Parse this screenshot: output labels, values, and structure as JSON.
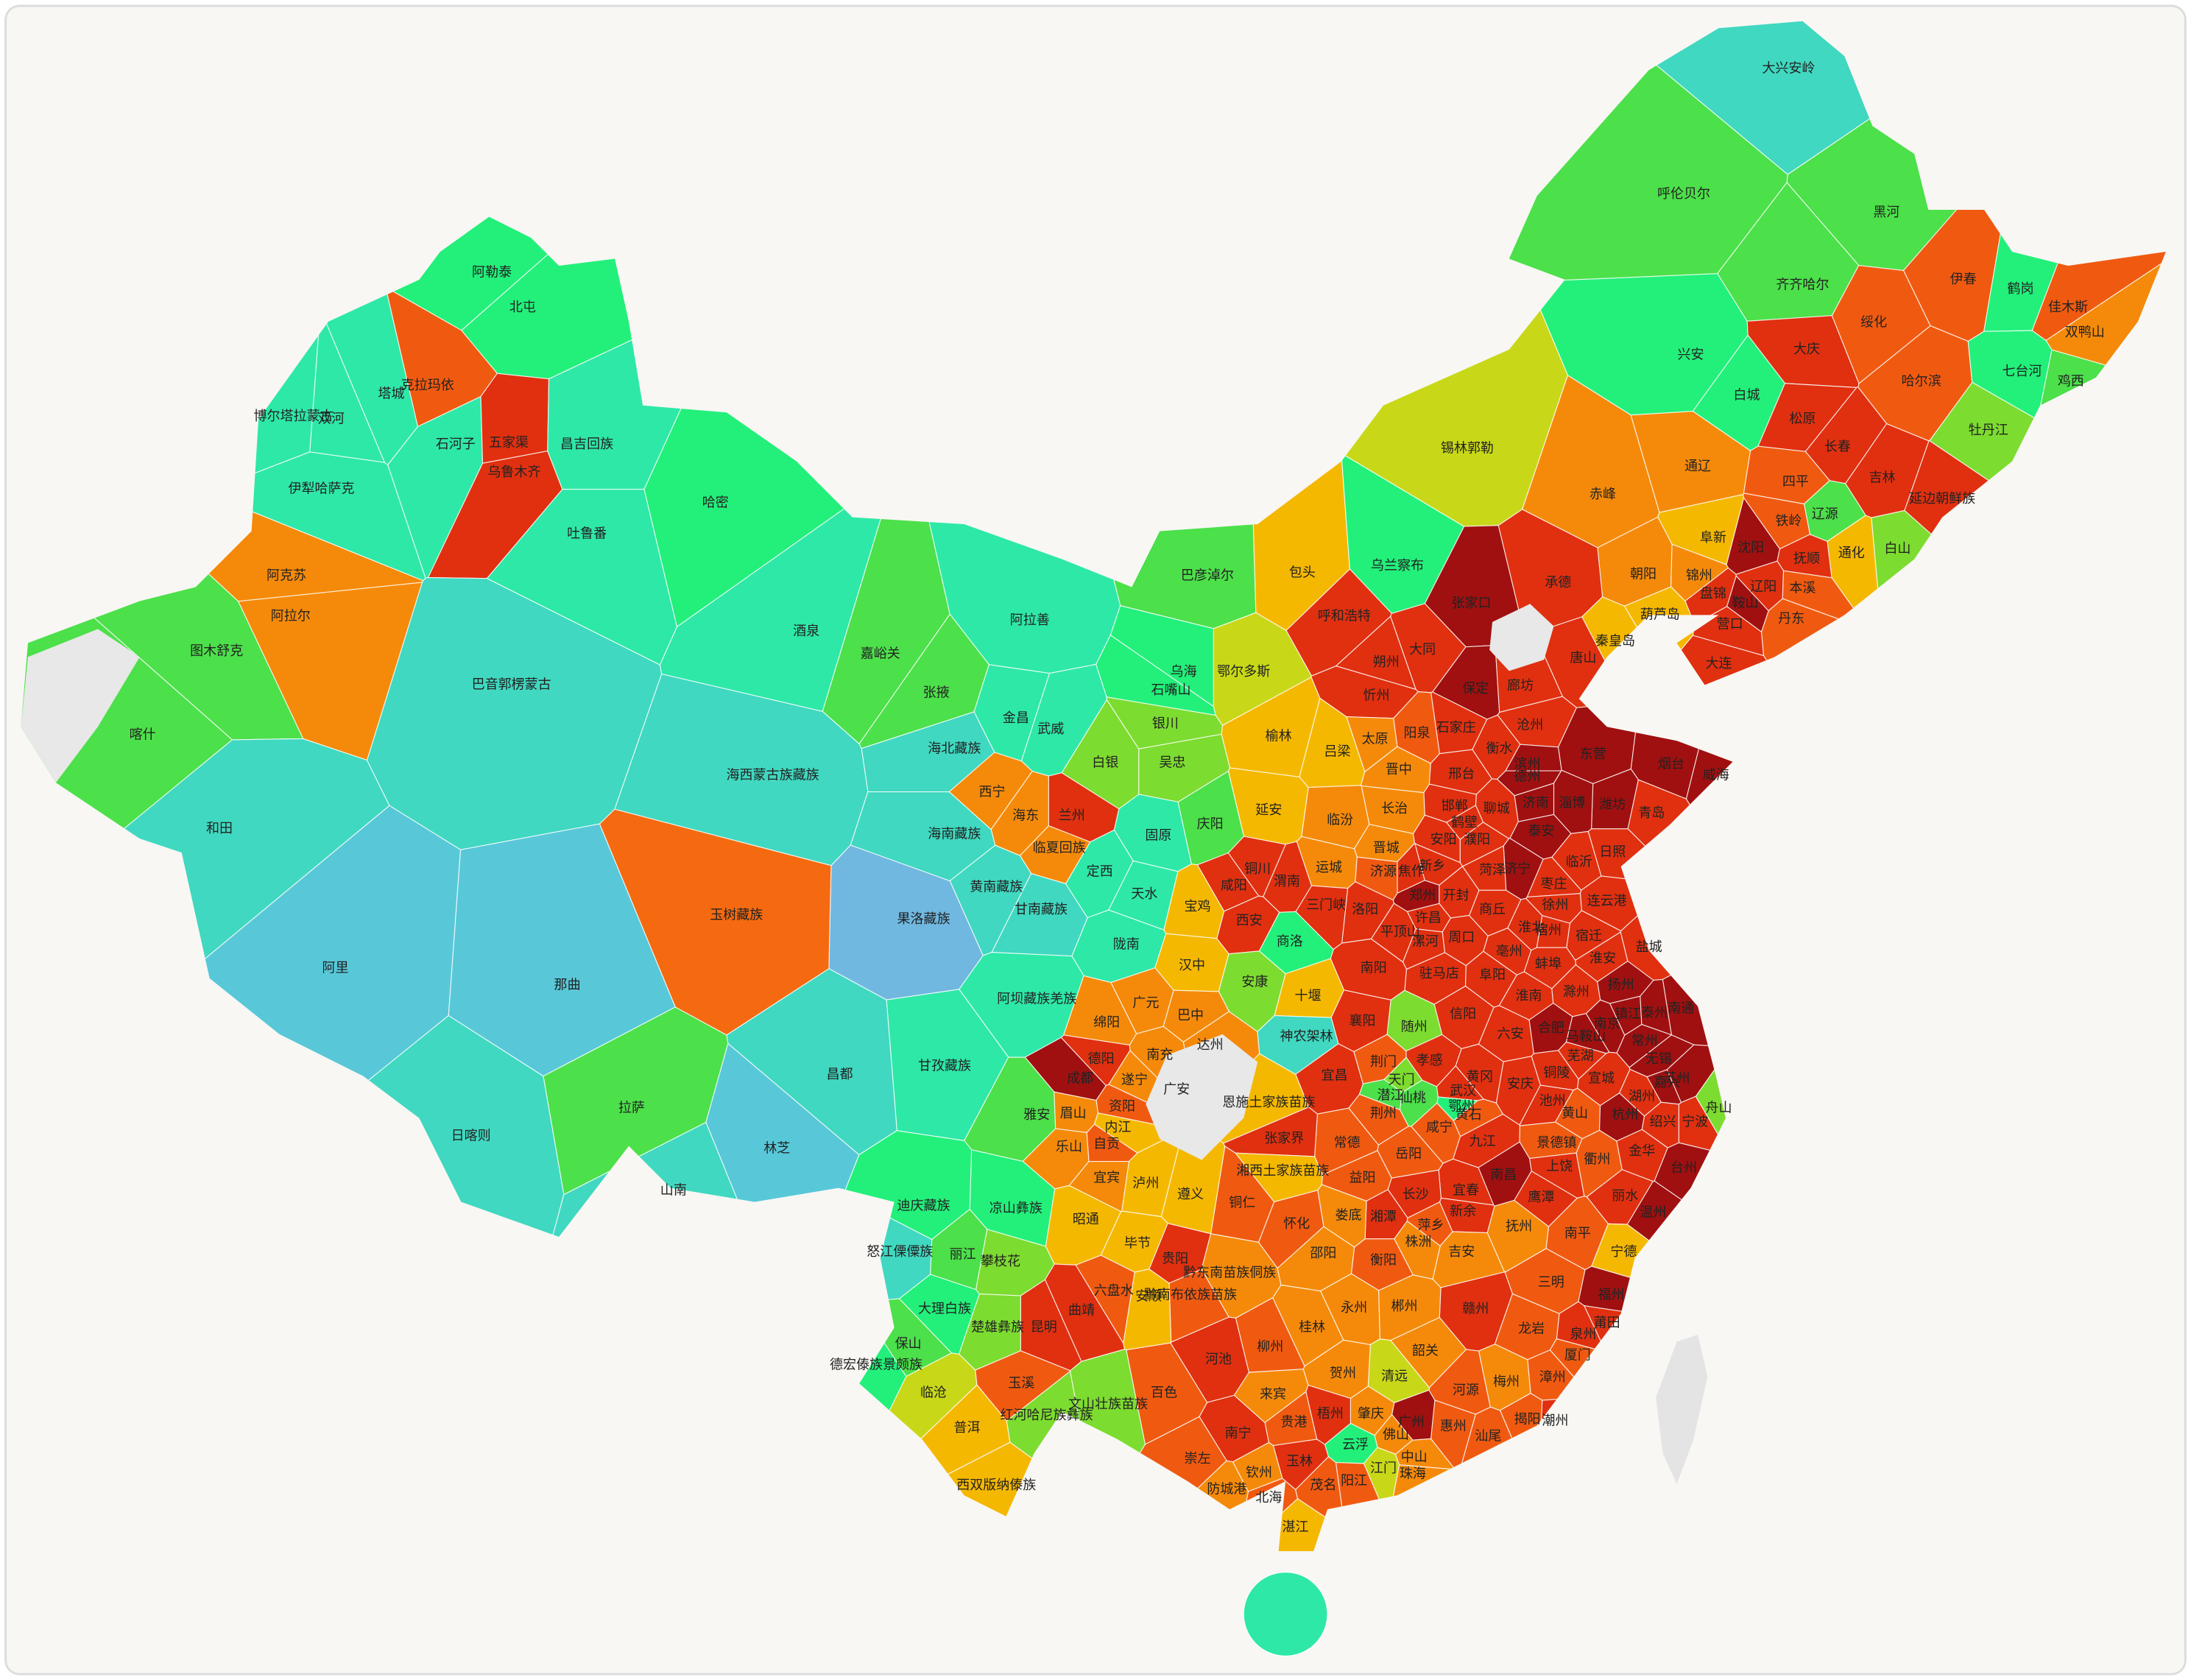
{
  "regions": [
    {
      "name": "阿勒泰",
      "color": "#22f07a"
    },
    {
      "name": "北屯",
      "color": "#22f07a"
    },
    {
      "name": "塔城",
      "color": "#2ee8a8"
    },
    {
      "name": "克拉玛依",
      "color": "#f05a10"
    },
    {
      "name": "博尔塔拉蒙古",
      "color": "#2ee8a8"
    },
    {
      "name": "双河",
      "color": "#2ee8a8"
    },
    {
      "name": "石河子",
      "color": "#2ee8a8"
    },
    {
      "name": "五家渠",
      "color": "#e03010"
    },
    {
      "name": "乌鲁木齐",
      "color": "#e03010"
    },
    {
      "name": "昌吉回族",
      "color": "#2ee8a8"
    },
    {
      "name": "伊犁哈萨克",
      "color": "#2ee8a8"
    },
    {
      "name": "吐鲁番",
      "color": "#2ee8a8"
    },
    {
      "name": "哈密",
      "color": "#22f07a"
    },
    {
      "name": "阿克苏",
      "color": "#f58a0a"
    },
    {
      "name": "阿拉尔",
      "color": "#f58a0a"
    },
    {
      "name": "图木舒克",
      "color": "#4ce04a"
    },
    {
      "name": "喀什",
      "color": "#4ce04a"
    },
    {
      "name": "和田",
      "color": "#40d8c0"
    },
    {
      "name": "巴音郭楞蒙古",
      "color": "#40d8c0"
    },
    {
      "name": "酒泉",
      "color": "#2ee8a8"
    },
    {
      "name": "嘉峪关",
      "color": "#4ce04a"
    },
    {
      "name": "阿拉善",
      "color": "#2ee8a8"
    },
    {
      "name": "张掖",
      "color": "#4ce04a"
    },
    {
      "name": "金昌",
      "color": "#2ee8a8"
    },
    {
      "name": "武威",
      "color": "#2ee8a8"
    },
    {
      "name": "海北藏族",
      "color": "#40d8c0"
    },
    {
      "name": "海西蒙古族藏族",
      "color": "#40d8c0"
    },
    {
      "name": "西宁",
      "color": "#f58a0a"
    },
    {
      "name": "海东",
      "color": "#f58a0a"
    },
    {
      "name": "兰州",
      "color": "#e03010"
    },
    {
      "name": "白银",
      "color": "#7ddc30"
    },
    {
      "name": "临夏回族",
      "color": "#f58a0a"
    },
    {
      "name": "海南藏族",
      "color": "#40d8c0"
    },
    {
      "name": "黄南藏族",
      "color": "#40d8c0"
    },
    {
      "name": "甘南藏族",
      "color": "#40d8c0"
    },
    {
      "name": "定西",
      "color": "#2ee8a8"
    },
    {
      "name": "果洛藏族",
      "color": "#70b8e0"
    },
    {
      "name": "玉树藏族",
      "color": "#f56a10"
    },
    {
      "name": "天水",
      "color": "#2ee8a8"
    },
    {
      "name": "陇南",
      "color": "#2ee8a8"
    },
    {
      "name": "阿坝藏族羌族",
      "color": "#2ee8a8"
    },
    {
      "name": "甘孜藏族",
      "color": "#2ee8a8"
    },
    {
      "name": "阿里",
      "color": "#58c8d8"
    },
    {
      "name": "那曲",
      "color": "#58c8d8"
    },
    {
      "name": "昌都",
      "color": "#40d8c0"
    },
    {
      "name": "拉萨",
      "color": "#4ce04a"
    },
    {
      "name": "日喀则",
      "color": "#40d8c0"
    },
    {
      "name": "林芝",
      "color": "#58c8d8"
    },
    {
      "name": "山南",
      "color": "#40d8c0"
    },
    {
      "name": "巴彦淖尔",
      "color": "#4ce04a"
    },
    {
      "name": "包头",
      "color": "#f5b800"
    },
    {
      "name": "乌兰察布",
      "color": "#22f07a"
    },
    {
      "name": "锡林郭勒",
      "color": "#c8d818"
    },
    {
      "name": "呼和浩特",
      "color": "#e03010"
    },
    {
      "name": "乌海",
      "color": "#22f07a"
    },
    {
      "name": "石嘴山",
      "color": "#22f07a"
    },
    {
      "name": "鄂尔多斯",
      "color": "#c8d818"
    },
    {
      "name": "银川",
      "color": "#7ddc30"
    },
    {
      "name": "吴忠",
      "color": "#7ddc30"
    },
    {
      "name": "固原",
      "color": "#2ee8a8"
    },
    {
      "name": "庆阳",
      "color": "#4ce04a"
    },
    {
      "name": "赤峰",
      "color": "#f58a0a"
    },
    {
      "name": "通辽",
      "color": "#f58a0a"
    },
    {
      "name": "兴安",
      "color": "#22f07a"
    },
    {
      "name": "呼伦贝尔",
      "color": "#4ce04a"
    },
    {
      "name": "大兴安岭",
      "color": "#40d8c0"
    },
    {
      "name": "黑河",
      "color": "#4ce04a"
    },
    {
      "name": "齐齐哈尔",
      "color": "#4ce04a"
    },
    {
      "name": "大庆",
      "color": "#e03010"
    },
    {
      "name": "白城",
      "color": "#22f07a"
    },
    {
      "name": "松原",
      "color": "#e03010"
    },
    {
      "name": "绥化",
      "color": "#f05a10"
    },
    {
      "name": "伊春",
      "color": "#f05a10"
    },
    {
      "name": "鹤岗",
      "color": "#22f07a"
    },
    {
      "name": "佳木斯",
      "color": "#f05a10"
    },
    {
      "name": "双鸭山",
      "color": "#f58a0a"
    },
    {
      "name": "哈尔滨",
      "color": "#f05a10"
    },
    {
      "name": "七台河",
      "color": "#22f07a"
    },
    {
      "name": "鸡西",
      "color": "#4ce04a"
    },
    {
      "name": "牡丹江",
      "color": "#7ddc30"
    },
    {
      "name": "长春",
      "color": "#e03010"
    },
    {
      "name": "吉林",
      "color": "#e03010"
    },
    {
      "name": "延边朝鲜族",
      "color": "#e03010"
    },
    {
      "name": "四平",
      "color": "#f05a10"
    },
    {
      "name": "辽源",
      "color": "#4ce04a"
    },
    {
      "name": "通化",
      "color": "#f5b800"
    },
    {
      "name": "白山",
      "color": "#7ddc30"
    },
    {
      "name": "铁岭",
      "color": "#f05a10"
    },
    {
      "name": "沈阳",
      "color": "#a01010"
    },
    {
      "name": "抚顺",
      "color": "#e03010"
    },
    {
      "name": "阜新",
      "color": "#f5b800"
    },
    {
      "name": "朝阳",
      "color": "#f58a0a"
    },
    {
      "name": "锦州",
      "color": "#f58a0a"
    },
    {
      "name": "盘锦",
      "color": "#e03010"
    },
    {
      "name": "鞍山",
      "color": "#a01010"
    },
    {
      "name": "辽阳",
      "color": "#e03010"
    },
    {
      "name": "本溪",
      "color": "#f05a10"
    },
    {
      "name": "营口",
      "color": "#e03010"
    },
    {
      "name": "丹东",
      "color": "#f05a10"
    },
    {
      "name": "大连",
      "color": "#e03010"
    },
    {
      "name": "葫芦岛",
      "color": "#f5b800"
    },
    {
      "name": "承德",
      "color": "#e03010"
    },
    {
      "name": "张家口",
      "color": "#a01010"
    },
    {
      "name": "秦皇岛",
      "color": "#f5b800"
    },
    {
      "name": "唐山",
      "color": "#e03010"
    },
    {
      "name": "大同",
      "color": "#e03010"
    },
    {
      "name": "朔州",
      "color": "#e03010"
    },
    {
      "name": "忻州",
      "color": "#e03010"
    },
    {
      "name": "保定",
      "color": "#a01010"
    },
    {
      "name": "廊坊",
      "color": "#e03010"
    },
    {
      "name": "沧州",
      "color": "#e03010"
    },
    {
      "name": "太原",
      "color": "#f58a0a"
    },
    {
      "name": "阳泉",
      "color": "#f05a10"
    },
    {
      "name": "石家庄",
      "color": "#e03010"
    },
    {
      "name": "衡水",
      "color": "#e03010"
    },
    {
      "name": "吕梁",
      "color": "#f5b800"
    },
    {
      "name": "晋中",
      "color": "#f58a0a"
    },
    {
      "name": "邢台",
      "color": "#e03010"
    },
    {
      "name": "长治",
      "color": "#f58a0a"
    },
    {
      "name": "邯郸",
      "color": "#e03010"
    },
    {
      "name": "临汾",
      "color": "#f58a0a"
    },
    {
      "name": "晋城",
      "color": "#f58a0a"
    },
    {
      "name": "运城",
      "color": "#f58a0a"
    },
    {
      "name": "滨州",
      "color": "#a01010"
    },
    {
      "name": "东营",
      "color": "#a01010"
    },
    {
      "name": "烟台",
      "color": "#a01010"
    },
    {
      "name": "威海",
      "color": "#a01010"
    },
    {
      "name": "潍坊",
      "color": "#a01010"
    },
    {
      "name": "德州",
      "color": "#a01010"
    },
    {
      "name": "聊城",
      "color": "#e03010"
    },
    {
      "name": "济南",
      "color": "#a01010"
    },
    {
      "name": "淄博",
      "color": "#a01010"
    },
    {
      "name": "青岛",
      "color": "#e03010"
    },
    {
      "name": "泰安",
      "color": "#a01010"
    },
    {
      "name": "日照",
      "color": "#e03010"
    },
    {
      "name": "临沂",
      "color": "#e03010"
    },
    {
      "name": "济宁",
      "color": "#a01010"
    },
    {
      "name": "菏泽",
      "color": "#e03010"
    },
    {
      "name": "枣庄",
      "color": "#e03010"
    },
    {
      "name": "安阳",
      "color": "#e03010"
    },
    {
      "name": "鹤壁",
      "color": "#e03010"
    },
    {
      "name": "濮阳",
      "color": "#e03010"
    },
    {
      "name": "新乡",
      "color": "#e03010"
    },
    {
      "name": "焦作",
      "color": "#e03010"
    },
    {
      "name": "济源",
      "color": "#f05a10"
    },
    {
      "name": "郑州",
      "color": "#a01010"
    },
    {
      "name": "开封",
      "color": "#e03010"
    },
    {
      "name": "洛阳",
      "color": "#e03010"
    },
    {
      "name": "三门峡",
      "color": "#e03010"
    },
    {
      "name": "平顶山",
      "color": "#e03010"
    },
    {
      "name": "许昌",
      "color": "#e03010"
    },
    {
      "name": "漯河",
      "color": "#e03010"
    },
    {
      "name": "周口",
      "color": "#e03010"
    },
    {
      "name": "商丘",
      "color": "#e03010"
    },
    {
      "name": "南阳",
      "color": "#e03010"
    },
    {
      "name": "驻马店",
      "color": "#e03010"
    },
    {
      "name": "信阳",
      "color": "#e03010"
    },
    {
      "name": "榆林",
      "color": "#f5b800"
    },
    {
      "name": "延安",
      "color": "#f5b800"
    },
    {
      "name": "铜川",
      "color": "#e03010"
    },
    {
      "name": "渭南",
      "color": "#e03010"
    },
    {
      "name": "咸阳",
      "color": "#e03010"
    },
    {
      "name": "西安",
      "color": "#e03010"
    },
    {
      "name": "宝鸡",
      "color": "#f5b800"
    },
    {
      "name": "商洛",
      "color": "#22f07a"
    },
    {
      "name": "汉中",
      "color": "#f5b800"
    },
    {
      "name": "安康",
      "color": "#7ddc30"
    },
    {
      "name": "十堰",
      "color": "#f5b800"
    },
    {
      "name": "连云港",
      "color": "#e03010"
    },
    {
      "name": "徐州",
      "color": "#e03010"
    },
    {
      "name": "宿迁",
      "color": "#e03010"
    },
    {
      "name": "淮北",
      "color": "#e03010"
    },
    {
      "name": "宿州",
      "color": "#e03010"
    },
    {
      "name": "亳州",
      "color": "#e03010"
    },
    {
      "name": "阜阳",
      "color": "#e03010"
    },
    {
      "name": "淮安",
      "color": "#e03010"
    },
    {
      "name": "盐城",
      "color": "#e03010"
    },
    {
      "name": "蚌埠",
      "color": "#e03010"
    },
    {
      "name": "淮南",
      "color": "#e03010"
    },
    {
      "name": "滁州",
      "color": "#e03010"
    },
    {
      "name": "扬州",
      "color": "#a01010"
    },
    {
      "name": "南通",
      "color": "#a01010"
    },
    {
      "name": "六安",
      "color": "#e03010"
    },
    {
      "name": "合肥",
      "color": "#a01010"
    },
    {
      "name": "马鞍山",
      "color": "#a01010"
    },
    {
      "name": "南京",
      "color": "#a01010"
    },
    {
      "name": "镇江",
      "color": "#a01010"
    },
    {
      "name": "泰州",
      "color": "#a01010"
    },
    {
      "name": "芜湖",
      "color": "#e03010"
    },
    {
      "name": "铜陵",
      "color": "#e03010"
    },
    {
      "name": "安庆",
      "color": "#e03010"
    },
    {
      "name": "宣城",
      "color": "#e03010"
    },
    {
      "name": "常州",
      "color": "#a01010"
    },
    {
      "name": "无锡",
      "color": "#a01010"
    },
    {
      "name": "苏州",
      "color": "#a01010"
    },
    {
      "name": "湖州",
      "color": "#e03010"
    },
    {
      "name": "嘉兴",
      "color": "#a01010"
    },
    {
      "name": "池州",
      "color": "#e03010"
    },
    {
      "name": "黄山",
      "color": "#f05a10"
    },
    {
      "name": "杭州",
      "color": "#a01010"
    },
    {
      "name": "绍兴",
      "color": "#e03010"
    },
    {
      "name": "宁波",
      "color": "#e03010"
    },
    {
      "name": "舟山",
      "color": "#7ddc30"
    },
    {
      "name": "襄阳",
      "color": "#e03010"
    },
    {
      "name": "随州",
      "color": "#7ddc30"
    },
    {
      "name": "神农架林",
      "color": "#40d8c0"
    },
    {
      "name": "宜昌",
      "color": "#e03010"
    },
    {
      "name": "荆门",
      "color": "#f05a10"
    },
    {
      "name": "孝感",
      "color": "#e03010"
    },
    {
      "name": "天门",
      "color": "#7ddc30"
    },
    {
      "name": "潜江",
      "color": "#4ce04a"
    },
    {
      "name": "仙桃",
      "color": "#4ce04a"
    },
    {
      "name": "武汉",
      "color": "#e03010"
    },
    {
      "name": "黄冈",
      "color": "#e03010"
    },
    {
      "name": "鄂州",
      "color": "#22f07a"
    },
    {
      "name": "黄石",
      "color": "#f05a10"
    },
    {
      "name": "荆州",
      "color": "#f05a10"
    },
    {
      "name": "咸宁",
      "color": "#f05a10"
    },
    {
      "name": "恩施土家族苗族",
      "color": "#f5b800"
    },
    {
      "name": "九江",
      "color": "#e03010"
    },
    {
      "name": "景德镇",
      "color": "#f05a10"
    },
    {
      "name": "上饶",
      "color": "#e03010"
    },
    {
      "name": "衢州",
      "color": "#f05a10"
    },
    {
      "name": "金华",
      "color": "#e03010"
    },
    {
      "name": "台州",
      "color": "#a01010"
    },
    {
      "name": "丽水",
      "color": "#e03010"
    },
    {
      "name": "温州",
      "color": "#a01010"
    },
    {
      "name": "南昌",
      "color": "#a01010"
    },
    {
      "name": "鹰潭",
      "color": "#e03010"
    },
    {
      "name": "宜春",
      "color": "#e03010"
    },
    {
      "name": "新余",
      "color": "#e03010"
    },
    {
      "name": "抚州",
      "color": "#f58a0a"
    },
    {
      "name": "吉安",
      "color": "#f58a0a"
    },
    {
      "name": "南平",
      "color": "#f05a10"
    },
    {
      "name": "宁德",
      "color": "#f5b800"
    },
    {
      "name": "三明",
      "color": "#f05a10"
    },
    {
      "name": "赣州",
      "color": "#e03010"
    },
    {
      "name": "福州",
      "color": "#a01010"
    },
    {
      "name": "莆田",
      "color": "#e03010"
    },
    {
      "name": "泉州",
      "color": "#e03010"
    },
    {
      "name": "龙岩",
      "color": "#f05a10"
    },
    {
      "name": "漳州",
      "color": "#f05a10"
    },
    {
      "name": "厦门",
      "color": "#f05a10"
    },
    {
      "name": "常德",
      "color": "#f05a10"
    },
    {
      "name": "张家界",
      "color": "#e03010"
    },
    {
      "name": "岳阳",
      "color": "#f05a10"
    },
    {
      "name": "益阳",
      "color": "#f05a10"
    },
    {
      "name": "长沙",
      "color": "#e03010"
    },
    {
      "name": "湘潭",
      "color": "#e03010"
    },
    {
      "name": "株洲",
      "color": "#f58a0a"
    },
    {
      "name": "萍乡",
      "color": "#f05a10"
    },
    {
      "name": "娄底",
      "color": "#f58a0a"
    },
    {
      "name": "湘西土家族苗族",
      "color": "#f5b800"
    },
    {
      "name": "怀化",
      "color": "#f05a10"
    },
    {
      "name": "邵阳",
      "color": "#f58a0a"
    },
    {
      "name": "衡阳",
      "color": "#f05a10"
    },
    {
      "name": "永州",
      "color": "#f58a0a"
    },
    {
      "name": "郴州",
      "color": "#f58a0a"
    },
    {
      "name": "韶关",
      "color": "#f58a0a"
    },
    {
      "name": "河源",
      "color": "#f05a10"
    },
    {
      "name": "梅州",
      "color": "#f58a0a"
    },
    {
      "name": "潮州",
      "color": "#e03010"
    },
    {
      "name": "揭阳",
      "color": "#f05a10"
    },
    {
      "name": "汕尾",
      "color": "#f05a10"
    },
    {
      "name": "惠州",
      "color": "#f05a10"
    },
    {
      "name": "广州",
      "color": "#a01010"
    },
    {
      "name": "佛山",
      "color": "#f58a0a"
    },
    {
      "name": "清远",
      "color": "#c8d818"
    },
    {
      "name": "肇庆",
      "color": "#f58a0a"
    },
    {
      "name": "云浮",
      "color": "#22f07a"
    },
    {
      "name": "江门",
      "color": "#c8d818"
    },
    {
      "name": "中山",
      "color": "#f58a0a"
    },
    {
      "name": "珠海",
      "color": "#f58a0a"
    },
    {
      "name": "阳江",
      "color": "#f05a10"
    },
    {
      "name": "茂名",
      "color": "#f05a10"
    },
    {
      "name": "湛江",
      "color": "#f5b800"
    },
    {
      "name": "贺州",
      "color": "#f58a0a"
    },
    {
      "name": "梧州",
      "color": "#e03010"
    },
    {
      "name": "桂林",
      "color": "#f58a0a"
    },
    {
      "name": "柳州",
      "color": "#f05a10"
    },
    {
      "name": "来宾",
      "color": "#f58a0a"
    },
    {
      "name": "贵港",
      "color": "#f05a10"
    },
    {
      "name": "玉林",
      "color": "#e03010"
    },
    {
      "name": "钦州",
      "color": "#f58a0a"
    },
    {
      "name": "北海",
      "color": "#f05a10"
    },
    {
      "name": "防城港",
      "color": "#f58a0a"
    },
    {
      "name": "南宁",
      "color": "#e03010"
    },
    {
      "name": "崇左",
      "color": "#f05a10"
    },
    {
      "name": "百色",
      "color": "#f05a10"
    },
    {
      "name": "河池",
      "color": "#e03010"
    },
    {
      "name": "铜仁",
      "color": "#f05a10"
    },
    {
      "name": "遵义",
      "color": "#f5b800"
    },
    {
      "name": "毕节",
      "color": "#f5b800"
    },
    {
      "name": "贵阳",
      "color": "#e03010"
    },
    {
      "name": "黔东南苗族侗族",
      "color": "#f58a0a"
    },
    {
      "name": "黔南布依族苗族",
      "color": "#f05a10"
    },
    {
      "name": "安顺",
      "color": "#f5b800"
    },
    {
      "name": "六盘水",
      "color": "#f05a10"
    },
    {
      "name": "广元",
      "color": "#f58a0a"
    },
    {
      "name": "巴中",
      "color": "#f58a0a"
    },
    {
      "name": "绵阳",
      "color": "#f58a0a"
    },
    {
      "name": "南充",
      "color": "#f58a0a"
    },
    {
      "name": "达州",
      "color": "#f58a0a"
    },
    {
      "name": "德阳",
      "color": "#e03010"
    },
    {
      "name": "遂宁",
      "color": "#f58a0a"
    },
    {
      "name": "广安",
      "color": "#f58a0a"
    },
    {
      "name": "成都",
      "color": "#a01010"
    },
    {
      "name": "资阳",
      "color": "#f05a10"
    },
    {
      "name": "雅安",
      "color": "#4ce04a"
    },
    {
      "name": "眉山",
      "color": "#f58a0a"
    },
    {
      "name": "内江",
      "color": "#f5b800"
    },
    {
      "name": "乐山",
      "color": "#f58a0a"
    },
    {
      "name": "自贡",
      "color": "#f05a10"
    },
    {
      "name": "宜宾",
      "color": "#f58a0a"
    },
    {
      "name": "泸州",
      "color": "#f5b800"
    },
    {
      "name": "凉山彝族",
      "color": "#22f07a"
    },
    {
      "name": "攀枝花",
      "color": "#7ddc30"
    },
    {
      "name": "昭通",
      "color": "#f5b800"
    },
    {
      "name": "迪庆藏族",
      "color": "#22f07a"
    },
    {
      "name": "怒江傈僳族",
      "color": "#40d8c0"
    },
    {
      "name": "丽江",
      "color": "#4ce04a"
    },
    {
      "name": "大理白族",
      "color": "#22f07a"
    },
    {
      "name": "楚雄彝族",
      "color": "#7ddc30"
    },
    {
      "name": "曲靖",
      "color": "#e03010"
    },
    {
      "name": "昆明",
      "color": "#e03010"
    },
    {
      "name": "保山",
      "color": "#4ce04a"
    },
    {
      "name": "德宏傣族景颇族",
      "color": "#22f07a"
    },
    {
      "name": "临沧",
      "color": "#c8d818"
    },
    {
      "name": "玉溪",
      "color": "#f05a10"
    },
    {
      "name": "红河哈尼族彝族",
      "color": "#7ddc30"
    },
    {
      "name": "文山壮族苗族",
      "color": "#7ddc30"
    },
    {
      "name": "普洱",
      "color": "#f5b800"
    },
    {
      "name": "西双版纳傣族",
      "color": "#f5b800"
    }
  ]
}
